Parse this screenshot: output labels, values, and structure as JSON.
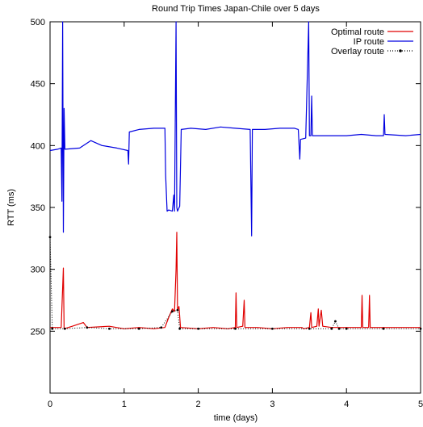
{
  "chart_data": {
    "type": "line",
    "title": "Round Trip Times Japan-Chile over 5 days",
    "xlabel": "time (days)",
    "ylabel": "RTT (ms)",
    "xlim": [
      0,
      5
    ],
    "ylim": [
      200,
      500
    ],
    "xticks": [
      "0",
      "1",
      "2",
      "3",
      "4",
      "5"
    ],
    "yticks": [
      "250",
      "300",
      "350",
      "400",
      "450",
      "500"
    ],
    "grid": false,
    "legend_position": "top-right",
    "series": [
      {
        "name": "Optimal route",
        "color": "#e00000",
        "points": [
          [
            0,
            253
          ],
          [
            0.15,
            253
          ],
          [
            0.18,
            301
          ],
          [
            0.19,
            252
          ],
          [
            0.3,
            254
          ],
          [
            0.45,
            257
          ],
          [
            0.5,
            253
          ],
          [
            0.8,
            254
          ],
          [
            1.0,
            252
          ],
          [
            1.2,
            253
          ],
          [
            1.4,
            252
          ],
          [
            1.55,
            253
          ],
          [
            1.6,
            261
          ],
          [
            1.63,
            265
          ],
          [
            1.65,
            268
          ],
          [
            1.68,
            266
          ],
          [
            1.7,
            300
          ],
          [
            1.71,
            330
          ],
          [
            1.72,
            267
          ],
          [
            1.74,
            270
          ],
          [
            1.76,
            253
          ],
          [
            2.0,
            252
          ],
          [
            2.2,
            253
          ],
          [
            2.4,
            252
          ],
          [
            2.5,
            253
          ],
          [
            2.51,
            281
          ],
          [
            2.52,
            253
          ],
          [
            2.6,
            254
          ],
          [
            2.62,
            275
          ],
          [
            2.63,
            253
          ],
          [
            2.7,
            253
          ],
          [
            2.8,
            253
          ],
          [
            3.0,
            252
          ],
          [
            3.2,
            253
          ],
          [
            3.4,
            253
          ],
          [
            3.42,
            252
          ],
          [
            3.5,
            253
          ],
          [
            3.52,
            265
          ],
          [
            3.53,
            253
          ],
          [
            3.6,
            254
          ],
          [
            3.62,
            268
          ],
          [
            3.63,
            254
          ],
          [
            3.66,
            267
          ],
          [
            3.68,
            254
          ],
          [
            3.8,
            253
          ],
          [
            4.0,
            253
          ],
          [
            4.2,
            253
          ],
          [
            4.21,
            279
          ],
          [
            4.22,
            253
          ],
          [
            4.3,
            253
          ],
          [
            4.31,
            279
          ],
          [
            4.32,
            253
          ],
          [
            4.6,
            253
          ],
          [
            5.0,
            253
          ]
        ]
      },
      {
        "name": "IP route",
        "color": "#0000e0",
        "points": [
          [
            0,
            396
          ],
          [
            0.1,
            397
          ],
          [
            0.15,
            398
          ],
          [
            0.16,
            355
          ],
          [
            0.17,
            500
          ],
          [
            0.18,
            330
          ],
          [
            0.19,
            430
          ],
          [
            0.2,
            397
          ],
          [
            0.4,
            398
          ],
          [
            0.55,
            404
          ],
          [
            0.7,
            400
          ],
          [
            0.9,
            398
          ],
          [
            1.05,
            396
          ],
          [
            1.06,
            385
          ],
          [
            1.07,
            411
          ],
          [
            1.2,
            413
          ],
          [
            1.4,
            414
          ],
          [
            1.55,
            414
          ],
          [
            1.56,
            376
          ],
          [
            1.58,
            347
          ],
          [
            1.6,
            348
          ],
          [
            1.65,
            347
          ],
          [
            1.67,
            360
          ],
          [
            1.68,
            347
          ],
          [
            1.7,
            500
          ],
          [
            1.71,
            350
          ],
          [
            1.72,
            347
          ],
          [
            1.75,
            351
          ],
          [
            1.77,
            413
          ],
          [
            1.9,
            414
          ],
          [
            2.1,
            413
          ],
          [
            2.3,
            415
          ],
          [
            2.5,
            414
          ],
          [
            2.7,
            413
          ],
          [
            2.72,
            327
          ],
          [
            2.73,
            413
          ],
          [
            2.9,
            413
          ],
          [
            3.1,
            414
          ],
          [
            3.3,
            414
          ],
          [
            3.35,
            413
          ],
          [
            3.37,
            389
          ],
          [
            3.38,
            405
          ],
          [
            3.45,
            406
          ],
          [
            3.49,
            500
          ],
          [
            3.5,
            408
          ],
          [
            3.52,
            408
          ],
          [
            3.53,
            440
          ],
          [
            3.54,
            408
          ],
          [
            3.8,
            408
          ],
          [
            4.0,
            408
          ],
          [
            4.2,
            409
          ],
          [
            4.4,
            408
          ],
          [
            4.5,
            408
          ],
          [
            4.51,
            425
          ],
          [
            4.52,
            409
          ],
          [
            4.8,
            408
          ],
          [
            5.0,
            409
          ]
        ]
      },
      {
        "name": "Overlay route",
        "color": "#000000",
        "points": [
          [
            0,
            326
          ],
          [
            0.03,
            252
          ],
          [
            0.2,
            252
          ],
          [
            0.5,
            253
          ],
          [
            0.8,
            252
          ],
          [
            1.2,
            252
          ],
          [
            1.5,
            253
          ],
          [
            1.65,
            266
          ],
          [
            1.72,
            267
          ],
          [
            1.75,
            252
          ],
          [
            2.0,
            252
          ],
          [
            2.5,
            252
          ],
          [
            3.0,
            252
          ],
          [
            3.5,
            252
          ],
          [
            3.8,
            252
          ],
          [
            3.85,
            258
          ],
          [
            3.9,
            252
          ],
          [
            4.0,
            252
          ],
          [
            4.5,
            252
          ],
          [
            5.0,
            252
          ]
        ]
      }
    ]
  }
}
